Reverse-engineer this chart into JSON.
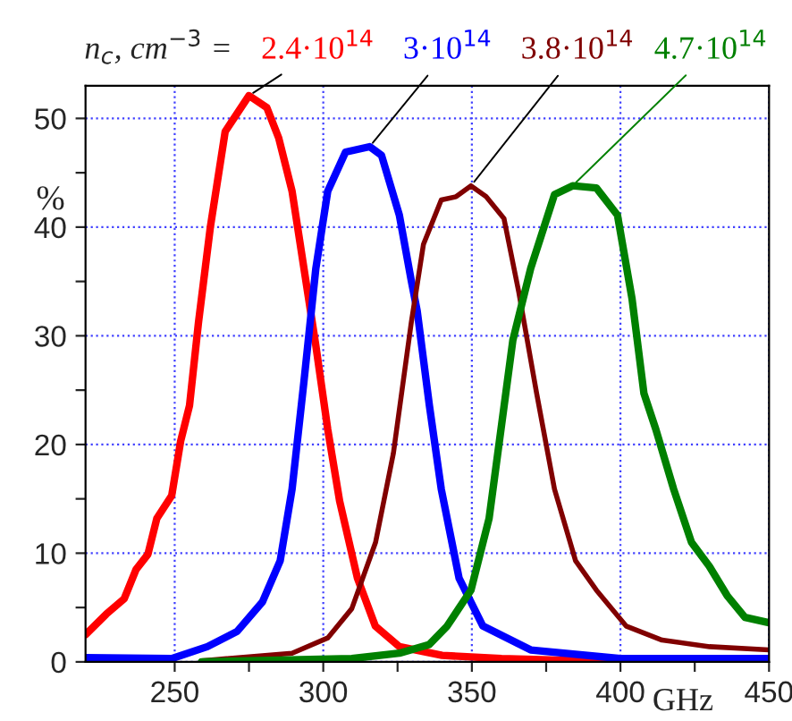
{
  "chart_data": {
    "type": "line",
    "xlabel": "GHz",
    "ylabel": "%",
    "annotations": [
      "n$_{c}$, cm$^{−3}$ ="
    ],
    "xlim": [
      220,
      450
    ],
    "ylim": [
      0,
      53
    ],
    "xticks": [
      250,
      {
        "value": 275,
        "label": null
      },
      300,
      {
        "value": 325,
        "label": null
      },
      350,
      {
        "value": 375,
        "label": null
      },
      400,
      {
        "value": 425,
        "label": null
      },
      450
    ],
    "yticks": [
      0,
      {
        "value": 5,
        "label": null
      },
      10,
      {
        "value": 15,
        "label": null
      },
      20,
      {
        "value": 25,
        "label": null
      },
      30,
      {
        "value": 35,
        "label": null
      },
      40,
      {
        "value": 45,
        "label": null
      },
      50
    ],
    "grid": true,
    "legend": false,
    "marker": "none",
    "line_style": "solid",
    "series": [
      {
        "name": "2.4·10$^{14}$",
        "color": "#ff0000",
        "x": [
          220,
          227,
          233,
          237,
          241,
          244,
          249,
          252,
          255,
          258,
          262,
          267,
          275,
          281,
          285,
          289.5,
          293.5,
          297.5,
          301.5,
          305.5,
          311.5,
          317.5,
          325.6,
          340,
          360,
          400,
          450
        ],
        "values": [
          2.5,
          4.4,
          5.8,
          8.5,
          9.9,
          13.2,
          15.3,
          20.3,
          23.6,
          31.2,
          40,
          48.8,
          52.1,
          51,
          48.2,
          43.3,
          36.2,
          29.1,
          21.4,
          14.8,
          7.7,
          3.3,
          1.4,
          0.6,
          0.3,
          0,
          0
        ]
      },
      {
        "name": "3·10$^{14}$",
        "color": "#0000ff",
        "x": [
          220,
          249,
          261,
          271,
          279.5,
          285.5,
          289.5,
          293.5,
          297.5,
          301.5,
          307.5,
          315.6,
          319.6,
          325.6,
          329.6,
          331.6,
          335.7,
          339.7,
          345.7,
          353.7,
          369.8,
          400,
          450
        ],
        "values": [
          0.4,
          0.3,
          1.4,
          2.8,
          5.5,
          9.3,
          15.9,
          25.8,
          36.2,
          43.3,
          46.9,
          47.4,
          46.6,
          41.1,
          35.1,
          32.3,
          23.6,
          15.9,
          7.7,
          3.3,
          1.1,
          0.3,
          0.3
        ]
      },
      {
        "name": "3.8·10$^{14}$",
        "color": "#800000",
        "x": [
          259,
          289.5,
          301.5,
          309.6,
          317.6,
          323.6,
          329.6,
          333.7,
          339.7,
          344.7,
          349.7,
          354.8,
          360.8,
          365.8,
          371.8,
          377.8,
          384.9,
          391.9,
          401.9,
          414,
          430,
          450
        ],
        "values": [
          0.1,
          0.8,
          2.2,
          4.9,
          11,
          19.2,
          31.2,
          38.4,
          42.5,
          42.8,
          43.8,
          42.8,
          40.8,
          34,
          24.7,
          15.9,
          9.3,
          6.6,
          3.3,
          2,
          1.4,
          1.1
        ]
      },
      {
        "name": "4.7·10$^{14}$",
        "color": "#008000",
        "x": [
          259,
          309.6,
          325.6,
          335.7,
          341.7,
          349.7,
          355.8,
          359.8,
          363.8,
          369.8,
          377.8,
          383.9,
          391.9,
          399,
          403.9,
          407.9,
          411.9,
          417.9,
          423.9,
          429.9,
          435.9,
          441.9,
          450
        ],
        "values": [
          0,
          0.3,
          0.8,
          1.6,
          3.3,
          6.6,
          13.2,
          21.4,
          29.6,
          36.2,
          43,
          43.8,
          43.6,
          41.1,
          33.4,
          24.7,
          21.4,
          15.9,
          11,
          8.8,
          6.1,
          4.1,
          3.6
        ]
      }
    ]
  }
}
